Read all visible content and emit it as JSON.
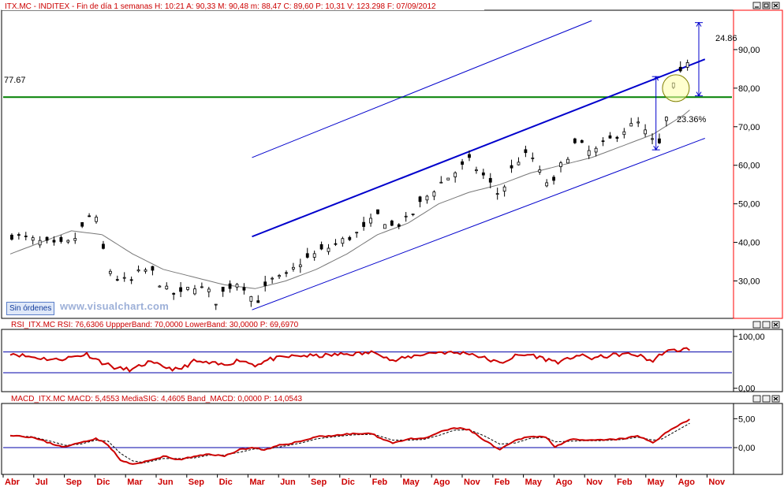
{
  "main_panel": {
    "header": "ITX.MC - INDITEX - Fin de día 1 semanas H: 10:21 A: 90,33 M: 90,48 m: 88,47 C: 89,60 P: 10,31 V: 123.298 F: 07/09/2012",
    "support_label": "77.67",
    "pct_label_top": "24.86",
    "pct_label_mid": "23.36%",
    "y_ticks": [
      "90,00",
      "80,00",
      "70,00",
      "60,00",
      "50,00",
      "40,00",
      "30,00"
    ],
    "badge": "Sin órdenes",
    "watermark": "www.visualchart.com"
  },
  "rsi_panel": {
    "header": "RSI_ITX.MC  RSI: 76,6306  UppperBand: 70,0000  LowerBand: 30,0000  P: 69,6970",
    "y_ticks": [
      "100,00",
      "0,00"
    ]
  },
  "macd_panel": {
    "header": "MACD_ITX.MC  MACD: 5,4553  MediaSIG: 4,4605  Band_MACD: 0,0000  P: 14,0543",
    "y_ticks": [
      "5,00",
      "0,00"
    ]
  },
  "x_months": [
    "Abr",
    "Jul",
    "Sep",
    "Dic",
    "Mar",
    "Jun",
    "Sep",
    "Dic",
    "Mar",
    "Jun",
    "Sep",
    "Dic",
    "Feb",
    "May",
    "Ago",
    "Nov",
    "Feb",
    "May",
    "Ago",
    "Nov",
    "Feb",
    "May",
    "Ago",
    "Nov"
  ],
  "colors": {
    "price_panel_border": "#ff0000",
    "channel": "#0000cc",
    "support": "#008000",
    "rsi_line": "#cc0000",
    "macd_line": "#cc0000",
    "badge_text": "#123c9c"
  },
  "chart_data": [
    {
      "type": "candlestick",
      "title": "ITX.MC - INDITEX - weekly",
      "x_categories": [
        "Abr",
        "Jul",
        "Sep",
        "Dic",
        "Mar",
        "Jun",
        "Sep",
        "Dic",
        "Mar",
        "Jun",
        "Sep",
        "Dic",
        "Feb",
        "May",
        "Ago",
        "Nov",
        "Feb",
        "May",
        "Ago",
        "Nov",
        "Feb",
        "May",
        "Ago",
        "Nov"
      ],
      "y_ticks": [
        90,
        80,
        70,
        60,
        50,
        40,
        30
      ],
      "ylim": [
        20.5,
        100
      ],
      "close_path": [
        {
          "m": 0,
          "v": 42
        },
        {
          "m": 0.5,
          "v": 41
        },
        {
          "m": 1,
          "v": 40
        },
        {
          "m": 1.5,
          "v": 39
        },
        {
          "m": 2,
          "v": 40
        },
        {
          "m": 2.3,
          "v": 43
        },
        {
          "m": 2.6,
          "v": 47
        },
        {
          "m": 2.8,
          "v": 46
        },
        {
          "m": 3,
          "v": 39
        },
        {
          "m": 3.3,
          "v": 32
        },
        {
          "m": 3.6,
          "v": 30
        },
        {
          "m": 4,
          "v": 30
        },
        {
          "m": 4.3,
          "v": 33
        },
        {
          "m": 4.7,
          "v": 32
        },
        {
          "m": 5,
          "v": 28
        },
        {
          "m": 5.5,
          "v": 26
        },
        {
          "m": 6,
          "v": 29
        },
        {
          "m": 6.5,
          "v": 27
        },
        {
          "m": 6.8,
          "v": 24
        },
        {
          "m": 7,
          "v": 28
        },
        {
          "m": 7.5,
          "v": 30
        },
        {
          "m": 7.8,
          "v": 27
        },
        {
          "m": 8,
          "v": 24
        },
        {
          "m": 8.5,
          "v": 30
        },
        {
          "m": 9,
          "v": 31
        },
        {
          "m": 9.5,
          "v": 35
        },
        {
          "m": 10,
          "v": 37
        },
        {
          "m": 10.5,
          "v": 39
        },
        {
          "m": 11,
          "v": 41
        },
        {
          "m": 11.5,
          "v": 43
        },
        {
          "m": 12,
          "v": 47
        },
        {
          "m": 12.5,
          "v": 44
        },
        {
          "m": 13,
          "v": 46
        },
        {
          "m": 13.5,
          "v": 51
        },
        {
          "m": 14,
          "v": 55
        },
        {
          "m": 14.5,
          "v": 58
        },
        {
          "m": 15,
          "v": 61
        },
        {
          "m": 15.5,
          "v": 57
        },
        {
          "m": 16,
          "v": 52
        },
        {
          "m": 16.5,
          "v": 61
        },
        {
          "m": 17,
          "v": 63
        },
        {
          "m": 17.3,
          "v": 58
        },
        {
          "m": 17.7,
          "v": 54
        },
        {
          "m": 18,
          "v": 60
        },
        {
          "m": 18.5,
          "v": 66
        },
        {
          "m": 19,
          "v": 63
        },
        {
          "m": 19.5,
          "v": 66
        },
        {
          "m": 20,
          "v": 69
        },
        {
          "m": 20.5,
          "v": 71
        },
        {
          "m": 21,
          "v": 66
        },
        {
          "m": 21.3,
          "v": 65
        },
        {
          "m": 21.6,
          "v": 80
        },
        {
          "m": 21.8,
          "v": 81
        },
        {
          "m": 22,
          "v": 86
        },
        {
          "m": 22.3,
          "v": 89
        }
      ],
      "moving_average_path": [
        {
          "m": 0,
          "v": 37
        },
        {
          "m": 1,
          "v": 40
        },
        {
          "m": 2,
          "v": 43
        },
        {
          "m": 3,
          "v": 42
        },
        {
          "m": 4,
          "v": 37
        },
        {
          "m": 5,
          "v": 33
        },
        {
          "m": 6,
          "v": 31
        },
        {
          "m": 7,
          "v": 29
        },
        {
          "m": 8,
          "v": 28
        },
        {
          "m": 9,
          "v": 30
        },
        {
          "m": 10,
          "v": 33
        },
        {
          "m": 11,
          "v": 37
        },
        {
          "m": 12,
          "v": 42
        },
        {
          "m": 13,
          "v": 45
        },
        {
          "m": 14,
          "v": 50
        },
        {
          "m": 15,
          "v": 53
        },
        {
          "m": 16,
          "v": 55
        },
        {
          "m": 17,
          "v": 58
        },
        {
          "m": 18,
          "v": 60
        },
        {
          "m": 19,
          "v": 62
        },
        {
          "m": 20,
          "v": 65
        },
        {
          "m": 21,
          "v": 68
        },
        {
          "m": 22,
          "v": 73
        },
        {
          "m": 22.3,
          "v": 75
        }
      ],
      "channel_mid": [
        {
          "m": 7.9,
          "v": 41.5
        },
        {
          "m": 22.7,
          "v": 87.5
        }
      ],
      "channel_top": [
        {
          "m": 7.9,
          "v": 62
        },
        {
          "m": 19,
          "v": 97.5
        }
      ],
      "channel_bottom": [
        {
          "m": 7.9,
          "v": 22.5
        },
        {
          "m": 22.7,
          "v": 67
        }
      ],
      "support_level": 77.67,
      "arrow_top": [
        {
          "m": 22.5,
          "v": 97
        },
        {
          "m": 22.5,
          "v": 78
        }
      ],
      "arrow_mid": [
        {
          "m": 21.1,
          "v": 83
        },
        {
          "m": 21.1,
          "v": 64
        }
      ],
      "ellipse_center": {
        "m": 21.75,
        "v": 80
      }
    },
    {
      "type": "line",
      "title": "RSI_ITX.MC",
      "y_ticks": [
        100,
        0
      ],
      "ylim": [
        -5,
        112
      ],
      "upper_band": 70,
      "lower_band": 30,
      "rsi_path": [
        {
          "m": 0,
          "v": 68
        },
        {
          "m": 0.5,
          "v": 62
        },
        {
          "m": 1,
          "v": 58
        },
        {
          "m": 1.5,
          "v": 55
        },
        {
          "m": 2,
          "v": 60
        },
        {
          "m": 2.5,
          "v": 66
        },
        {
          "m": 3,
          "v": 50
        },
        {
          "m": 3.5,
          "v": 38
        },
        {
          "m": 4,
          "v": 36
        },
        {
          "m": 4.5,
          "v": 50
        },
        {
          "m": 5,
          "v": 42
        },
        {
          "m": 5.5,
          "v": 35
        },
        {
          "m": 6,
          "v": 52
        },
        {
          "m": 6.5,
          "v": 48
        },
        {
          "m": 7,
          "v": 45
        },
        {
          "m": 7.5,
          "v": 55
        },
        {
          "m": 8,
          "v": 45
        },
        {
          "m": 8.5,
          "v": 56
        },
        {
          "m": 9,
          "v": 60
        },
        {
          "m": 9.5,
          "v": 63
        },
        {
          "m": 10,
          "v": 62
        },
        {
          "m": 10.5,
          "v": 64
        },
        {
          "m": 11,
          "v": 66
        },
        {
          "m": 11.5,
          "v": 67
        },
        {
          "m": 12,
          "v": 70
        },
        {
          "m": 12.5,
          "v": 52
        },
        {
          "m": 13,
          "v": 60
        },
        {
          "m": 13.5,
          "v": 66
        },
        {
          "m": 14,
          "v": 70
        },
        {
          "m": 14.5,
          "v": 68
        },
        {
          "m": 15,
          "v": 68
        },
        {
          "m": 15.5,
          "v": 58
        },
        {
          "m": 16,
          "v": 48
        },
        {
          "m": 16.5,
          "v": 62
        },
        {
          "m": 17,
          "v": 65
        },
        {
          "m": 17.5,
          "v": 56
        },
        {
          "m": 18,
          "v": 50
        },
        {
          "m": 18.5,
          "v": 64
        },
        {
          "m": 19,
          "v": 58
        },
        {
          "m": 19.5,
          "v": 62
        },
        {
          "m": 20,
          "v": 66
        },
        {
          "m": 20.5,
          "v": 64
        },
        {
          "m": 21,
          "v": 52
        },
        {
          "m": 21.3,
          "v": 68
        },
        {
          "m": 21.6,
          "v": 72
        },
        {
          "m": 22,
          "v": 75
        },
        {
          "m": 22.3,
          "v": 77
        }
      ]
    },
    {
      "type": "line",
      "title": "MACD_ITX.MC",
      "y_ticks": [
        5,
        0
      ],
      "ylim": [
        -4.5,
        7.5
      ],
      "band": 0,
      "macd_path": [
        {
          "m": 0,
          "v": 2.2
        },
        {
          "m": 0.7,
          "v": 1.8
        },
        {
          "m": 1.4,
          "v": 0.6
        },
        {
          "m": 1.8,
          "v": 0.1
        },
        {
          "m": 2.3,
          "v": 0.9
        },
        {
          "m": 2.8,
          "v": 1.6
        },
        {
          "m": 3.2,
          "v": 0.5
        },
        {
          "m": 3.6,
          "v": -2.2
        },
        {
          "m": 4,
          "v": -2.9
        },
        {
          "m": 4.4,
          "v": -2.5
        },
        {
          "m": 5,
          "v": -1.5
        },
        {
          "m": 5.5,
          "v": -2.1
        },
        {
          "m": 6,
          "v": -1.6
        },
        {
          "m": 6.5,
          "v": -1.1
        },
        {
          "m": 7,
          "v": -1.5
        },
        {
          "m": 7.5,
          "v": -0.3
        },
        {
          "m": 8,
          "v": 0
        },
        {
          "m": 8.3,
          "v": -0.5
        },
        {
          "m": 8.8,
          "v": 0.4
        },
        {
          "m": 9.5,
          "v": 1.1
        },
        {
          "m": 10,
          "v": 1.9
        },
        {
          "m": 10.6,
          "v": 2.1
        },
        {
          "m": 11.2,
          "v": 2.4
        },
        {
          "m": 11.8,
          "v": 2.4
        },
        {
          "m": 12,
          "v": 1.9
        },
        {
          "m": 12.5,
          "v": 0.8
        },
        {
          "m": 13,
          "v": 1.5
        },
        {
          "m": 13.5,
          "v": 1.5
        },
        {
          "m": 14,
          "v": 2.6
        },
        {
          "m": 14.5,
          "v": 3.4
        },
        {
          "m": 15,
          "v": 3.1
        },
        {
          "m": 15.5,
          "v": 1.2
        },
        {
          "m": 16,
          "v": -0.4
        },
        {
          "m": 16.5,
          "v": 1.2
        },
        {
          "m": 17,
          "v": 2.0
        },
        {
          "m": 17.5,
          "v": 1.8
        },
        {
          "m": 17.8,
          "v": 0.2
        },
        {
          "m": 18.3,
          "v": 1.4
        },
        {
          "m": 18.8,
          "v": 1.2
        },
        {
          "m": 19.3,
          "v": 1.3
        },
        {
          "m": 20,
          "v": 1.5
        },
        {
          "m": 20.5,
          "v": 2.0
        },
        {
          "m": 21,
          "v": 0.9
        },
        {
          "m": 21.3,
          "v": 2.0
        },
        {
          "m": 21.6,
          "v": 3.2
        },
        {
          "m": 22,
          "v": 4.4
        },
        {
          "m": 22.3,
          "v": 5.1
        }
      ],
      "signal_path": [
        {
          "m": 0,
          "v": 2.0
        },
        {
          "m": 0.7,
          "v": 1.9
        },
        {
          "m": 1.4,
          "v": 1.0
        },
        {
          "m": 1.8,
          "v": 0.4
        },
        {
          "m": 2.3,
          "v": 0.6
        },
        {
          "m": 2.8,
          "v": 1.3
        },
        {
          "m": 3.2,
          "v": 1.1
        },
        {
          "m": 3.6,
          "v": -1.0
        },
        {
          "m": 4,
          "v": -2.3
        },
        {
          "m": 4.4,
          "v": -2.6
        },
        {
          "m": 5,
          "v": -1.9
        },
        {
          "m": 5.5,
          "v": -1.9
        },
        {
          "m": 6,
          "v": -1.8
        },
        {
          "m": 6.5,
          "v": -1.3
        },
        {
          "m": 7,
          "v": -1.3
        },
        {
          "m": 7.5,
          "v": -0.8
        },
        {
          "m": 8,
          "v": -0.2
        },
        {
          "m": 8.3,
          "v": -0.3
        },
        {
          "m": 8.8,
          "v": 0.1
        },
        {
          "m": 9.5,
          "v": 0.8
        },
        {
          "m": 10,
          "v": 1.5
        },
        {
          "m": 10.6,
          "v": 1.9
        },
        {
          "m": 11.2,
          "v": 2.2
        },
        {
          "m": 11.8,
          "v": 2.3
        },
        {
          "m": 12,
          "v": 2.1
        },
        {
          "m": 12.5,
          "v": 1.3
        },
        {
          "m": 13,
          "v": 1.3
        },
        {
          "m": 13.5,
          "v": 1.4
        },
        {
          "m": 14,
          "v": 2.1
        },
        {
          "m": 14.5,
          "v": 3.0
        },
        {
          "m": 15,
          "v": 3.1
        },
        {
          "m": 15.5,
          "v": 2.0
        },
        {
          "m": 16,
          "v": 0.6
        },
        {
          "m": 16.5,
          "v": 0.8
        },
        {
          "m": 17,
          "v": 1.6
        },
        {
          "m": 17.5,
          "v": 1.8
        },
        {
          "m": 17.8,
          "v": 1.0
        },
        {
          "m": 18.3,
          "v": 1.1
        },
        {
          "m": 18.8,
          "v": 1.2
        },
        {
          "m": 19.3,
          "v": 1.2
        },
        {
          "m": 20,
          "v": 1.4
        },
        {
          "m": 20.5,
          "v": 1.8
        },
        {
          "m": 21,
          "v": 1.3
        },
        {
          "m": 21.3,
          "v": 1.5
        },
        {
          "m": 21.6,
          "v": 2.4
        },
        {
          "m": 22,
          "v": 3.6
        },
        {
          "m": 22.3,
          "v": 4.5
        }
      ]
    }
  ]
}
